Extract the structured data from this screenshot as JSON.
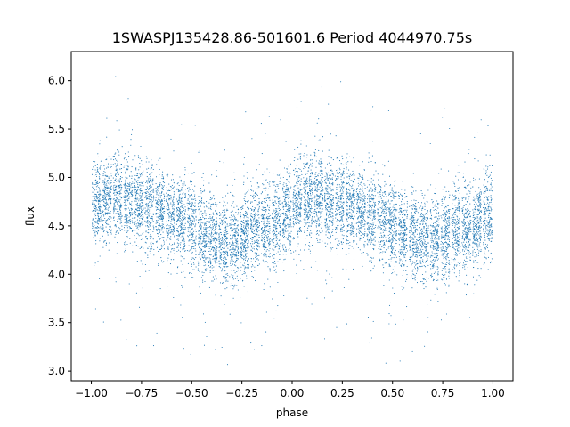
{
  "chart_data": {
    "type": "scatter",
    "title": "1SWASPJ135428.86-501601.6 Period 4044970.75s",
    "xlabel": "phase",
    "ylabel": "flux",
    "xlim": [
      -1.1,
      1.1
    ],
    "ylim": [
      2.9,
      6.3
    ],
    "x_ticks": [
      -1.0,
      -0.75,
      -0.5,
      -0.25,
      0.0,
      0.25,
      0.5,
      0.75,
      1.0
    ],
    "x_tick_labels": [
      "−1.00",
      "−0.75",
      "−0.50",
      "−0.25",
      "0.00",
      "0.25",
      "0.50",
      "0.75",
      "1.00"
    ],
    "y_ticks": [
      3.0,
      3.5,
      4.0,
      4.5,
      5.0,
      5.5,
      6.0
    ],
    "y_tick_labels": [
      "3.0",
      "3.5",
      "4.0",
      "4.5",
      "5.0",
      "5.5",
      "6.0"
    ],
    "grid": false,
    "point_color": "#1f77b4",
    "phase_profile": {
      "phase": [
        0.0,
        0.05,
        0.1,
        0.15,
        0.2,
        0.25,
        0.3,
        0.35,
        0.4,
        0.45,
        0.5,
        0.55,
        0.6,
        0.65,
        0.7,
        0.75,
        0.8,
        0.85,
        0.9,
        0.95,
        1.0
      ],
      "median_flux": [
        4.7,
        4.75,
        4.8,
        4.78,
        4.75,
        4.72,
        4.7,
        4.65,
        4.6,
        4.55,
        4.5,
        4.45,
        4.4,
        4.35,
        4.32,
        4.38,
        4.45,
        4.5,
        4.5,
        4.55,
        4.7
      ]
    }
  }
}
